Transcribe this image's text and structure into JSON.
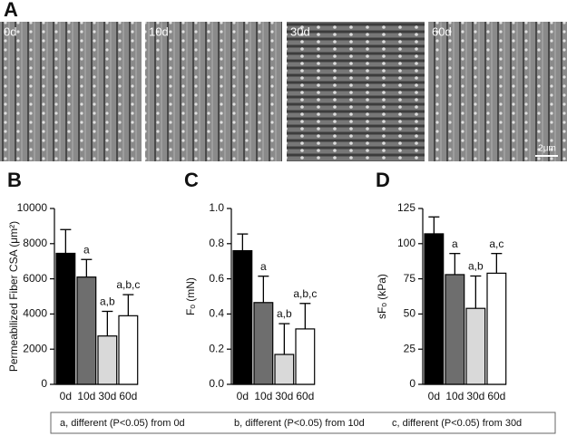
{
  "panel_a": {
    "label": "A",
    "images": [
      "0d",
      "10d",
      "30d",
      "60d"
    ],
    "scale_bar": "2μm"
  },
  "chart_data": [
    {
      "type": "bar",
      "panel": "B",
      "ylabel": "Permeabilized Fiber CSA (μm²)",
      "categories": [
        "0d",
        "10d",
        "30d",
        "60d"
      ],
      "values": [
        7450,
        6100,
        2750,
        3900
      ],
      "errors": [
        1350,
        1000,
        1400,
        1200
      ],
      "bar_labels": [
        null,
        "a",
        "a,b",
        "a,b,c"
      ],
      "colors": [
        "#000000",
        "#6e6e6e",
        "#d9d9d9",
        "#ffffff"
      ],
      "ylim": [
        0,
        10000
      ],
      "yticks": [
        0,
        2000,
        4000,
        6000,
        8000,
        10000
      ]
    },
    {
      "type": "bar",
      "panel": "C",
      "ylabel": "Fₒ (mN)",
      "categories": [
        "0d",
        "10d",
        "30d",
        "60d"
      ],
      "values": [
        0.76,
        0.465,
        0.17,
        0.315
      ],
      "errors": [
        0.095,
        0.15,
        0.175,
        0.145
      ],
      "bar_labels": [
        null,
        "a",
        "a,b",
        "a,b,c"
      ],
      "colors": [
        "#000000",
        "#6e6e6e",
        "#d9d9d9",
        "#ffffff"
      ],
      "ylim": [
        0,
        1.0
      ],
      "yticks": [
        {
          "value": 0,
          "label": "0.0"
        },
        {
          "value": 0.2,
          "label": "0.2"
        },
        {
          "value": 0.4,
          "label": "0.4"
        },
        {
          "value": 0.6,
          "label": "0.6"
        },
        {
          "value": 0.8,
          "label": "0.8"
        },
        {
          "value": 1.0,
          "label": "1.0"
        }
      ]
    },
    {
      "type": "bar",
      "panel": "D",
      "ylabel": "sFₒ (kPa)",
      "categories": [
        "0d",
        "10d",
        "30d",
        "60d"
      ],
      "values": [
        107,
        78,
        54,
        79
      ],
      "errors": [
        12,
        15,
        23,
        14
      ],
      "bar_labels": [
        null,
        "a",
        "a,b",
        "a,c"
      ],
      "colors": [
        "#000000",
        "#6e6e6e",
        "#d9d9d9",
        "#ffffff"
      ],
      "ylim": [
        0,
        125
      ],
      "yticks": [
        0,
        25,
        50,
        75,
        100,
        125
      ]
    }
  ],
  "footnote": [
    "a, different (P<0.05) from 0d",
    "b, different (P<0.05) from 10d",
    "c, different (P<0.05) from 30d"
  ]
}
